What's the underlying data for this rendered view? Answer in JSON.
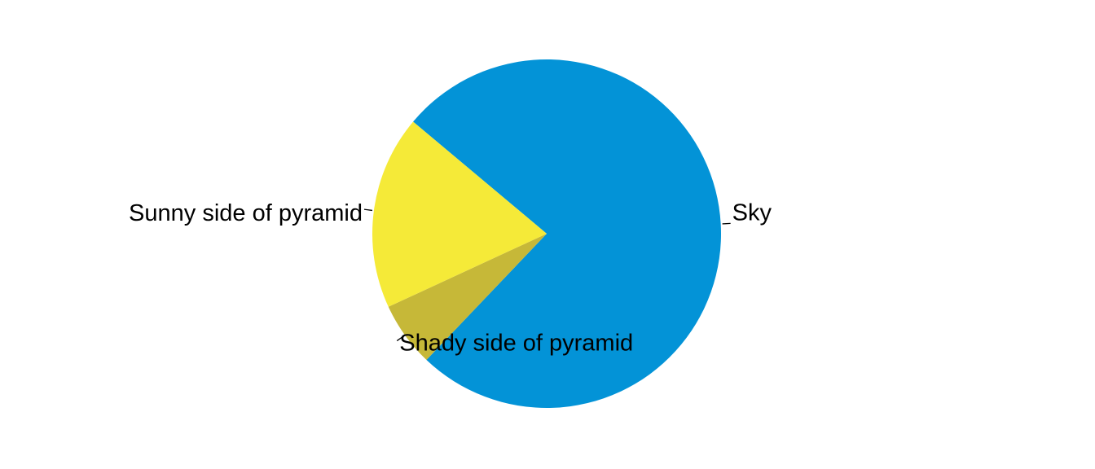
{
  "chart_data": {
    "type": "pie",
    "title": "",
    "slices": [
      {
        "label": "Sky",
        "value": 76,
        "color": "#0393D7"
      },
      {
        "label": "Shady side of pyramid",
        "value": 6,
        "color": "#C6B838"
      },
      {
        "label": "Sunny side of pyramid",
        "value": 18,
        "color": "#F5EA38"
      }
    ],
    "start_angle_deg": 140,
    "direction": "clockwise",
    "legend": "none",
    "labels": "outside with leader lines"
  }
}
